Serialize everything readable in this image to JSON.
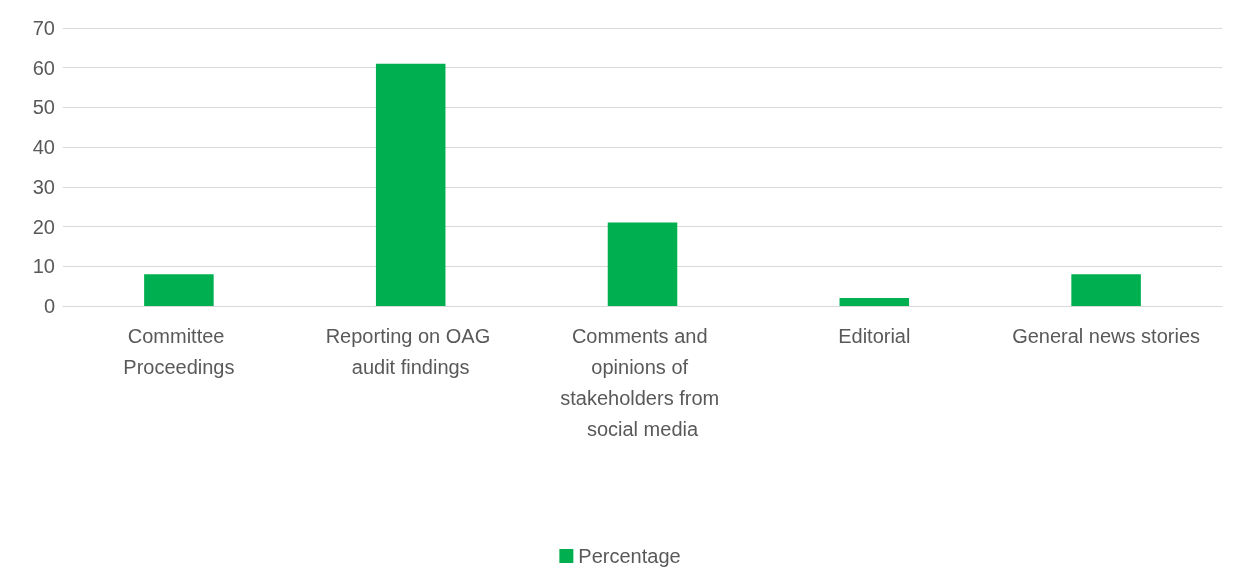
{
  "chart_data": {
    "type": "bar",
    "categories": [
      "Committee Proceedings",
      "Reporting on OAG audit findings",
      "Comments and opinions of stakeholders from social media",
      "Editorial",
      "General news stories"
    ],
    "series": [
      {
        "name": "Percentage",
        "color": "#00b050",
        "values": [
          8,
          61,
          21,
          2,
          8
        ]
      }
    ],
    "ylim": [
      0,
      70
    ],
    "yticks": [
      0,
      10,
      20,
      30,
      40,
      50,
      60,
      70
    ],
    "grid": "y",
    "legend": "bottom"
  }
}
